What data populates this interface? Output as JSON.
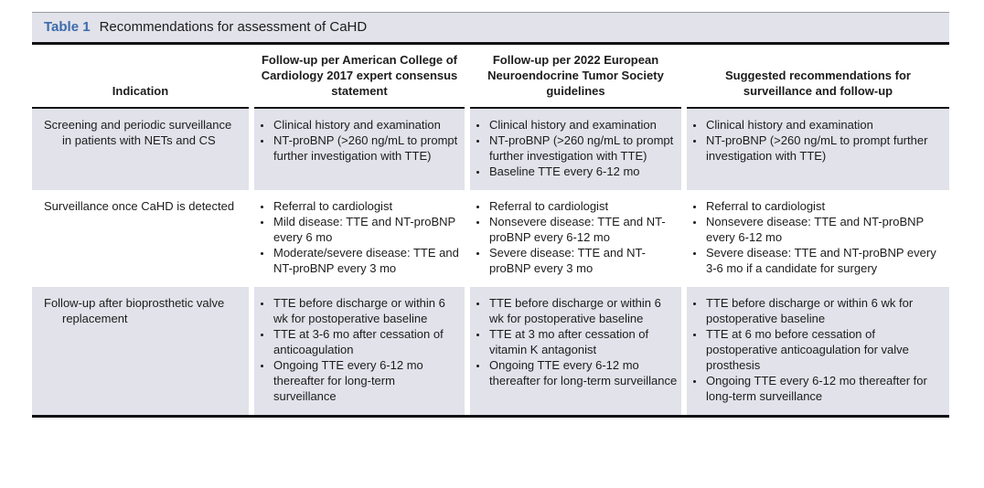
{
  "table": {
    "label": "Table 1",
    "title": "Recommendations for assessment of CaHD",
    "columns": [
      "Indication",
      "Follow-up per American College of Cardiology 2017 expert consensus statement",
      "Follow-up per 2022 European Neuroendocrine Tumor Society guidelines",
      "Suggested recommendations for surveillance and follow-up"
    ],
    "rows": [
      {
        "indication": "Screening and periodic surveillance in patients with NETs and CS",
        "acc_2017": [
          "Clinical history and examination",
          "NT-proBNP (>260 ng/mL to prompt further investigation with TTE)"
        ],
        "enets_2022": [
          "Clinical history and examination",
          "NT-proBNP (>260 ng/mL to prompt further investigation with TTE)",
          "Baseline TTE every 6-12 mo"
        ],
        "suggested": [
          "Clinical history and examination",
          "NT-proBNP (>260 ng/mL to prompt further investigation with TTE)"
        ]
      },
      {
        "indication": "Surveillance once CaHD is detected",
        "acc_2017": [
          "Referral to cardiologist",
          "Mild disease: TTE and NT-proBNP every 6 mo",
          "Moderate/severe disease: TTE and NT-proBNP every 3 mo"
        ],
        "enets_2022": [
          "Referral to cardiologist",
          "Nonsevere disease: TTE and NT-proBNP every 6-12 mo",
          "Severe disease: TTE and NT-proBNP every 3 mo"
        ],
        "suggested": [
          "Referral to cardiologist",
          "Nonsevere disease: TTE and NT-proBNP every 6-12 mo",
          "Severe disease: TTE and NT-proBNP every 3-6 mo if a candidate for surgery"
        ]
      },
      {
        "indication": "Follow-up after bioprosthetic valve replacement",
        "acc_2017": [
          "TTE before discharge or within 6 wk for postoperative baseline",
          "TTE at 3-6 mo after cessation of anticoagulation",
          "Ongoing TTE every 6-12 mo thereafter for long-term surveillance"
        ],
        "enets_2022": [
          "TTE before discharge or within 6 wk for postoperative baseline",
          "TTE at 3 mo after cessation of vitamin K antagonist",
          "Ongoing TTE every 6-12 mo thereafter for long-term surveillance"
        ],
        "suggested": [
          "TTE before discharge or within 6 wk for postoperative baseline",
          "TTE at 6 mo before cessation of postoperative anticoagulation for valve prosthesis",
          "Ongoing TTE every 6-12 mo thereafter for long-term surveillance"
        ]
      }
    ],
    "colors": {
      "accent_blue": "#3a6bab",
      "row_shade": "#e2e2ea",
      "rule_black": "#121214"
    }
  }
}
